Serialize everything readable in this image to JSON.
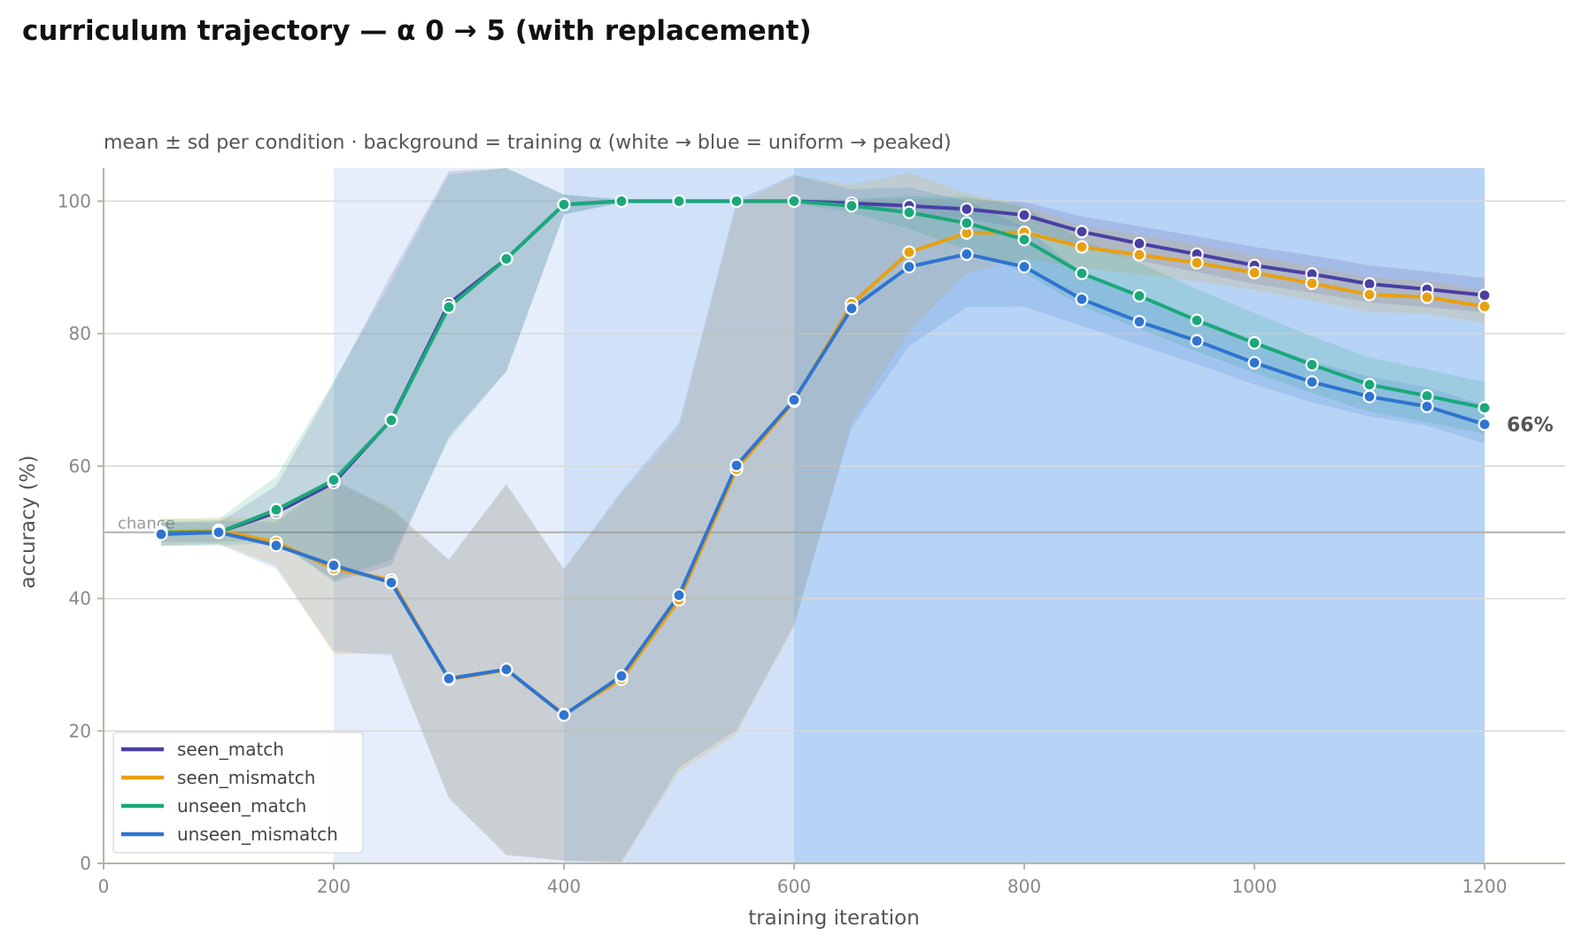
{
  "chart_data": {
    "type": "line",
    "title": "curriculum trajectory — α 0 → 5 (with replacement)",
    "subtitle": "mean ± sd per condition · background = training α (white → blue = uniform → peaked)",
    "xlabel": "training iteration",
    "ylabel": "accuracy (%)",
    "xlim": [
      0,
      1270
    ],
    "ylim": [
      0,
      105
    ],
    "xticks": [
      0,
      200,
      400,
      600,
      800,
      1000,
      1200
    ],
    "yticks": [
      0,
      20,
      40,
      60,
      80,
      100
    ],
    "grid": "horizontal",
    "legend_position": "lower-left",
    "chance": {
      "label": "chance",
      "value": 50
    },
    "end_annotation": {
      "series": "unseen_mismatch",
      "label": "66%"
    },
    "background_bands": [
      {
        "x_start": 200,
        "x_end": 400,
        "color": "#e6eefb"
      },
      {
        "x_start": 400,
        "x_end": 600,
        "color": "#d1e2f8"
      },
      {
        "x_start": 600,
        "x_end": 1200,
        "color": "#b7d3f5"
      }
    ],
    "x": [
      50,
      100,
      150,
      200,
      250,
      300,
      350,
      400,
      450,
      500,
      550,
      600,
      650,
      700,
      750,
      800,
      850,
      900,
      950,
      1000,
      1050,
      1100,
      1150,
      1200
    ],
    "series": [
      {
        "name": "seen_match",
        "color": "#4a3fa3",
        "values": [
          50,
          50,
          53,
          57.5,
          67,
          84.5,
          91.3,
          99.5,
          100,
          100,
          100,
          100,
          99.7,
          99.3,
          98.8,
          97.9,
          95.4,
          93.6,
          92,
          90.3,
          89,
          87.5,
          86.7,
          85.8
        ],
        "sd": [
          1.5,
          1.5,
          4,
          15,
          22,
          20,
          17,
          1.5,
          0.2,
          0.2,
          0.2,
          0.2,
          0.5,
          1,
          1.5,
          2,
          2.3,
          2.6,
          2.7,
          2.8,
          2.8,
          2.8,
          2.7,
          2.6
        ]
      },
      {
        "name": "seen_mismatch",
        "color": "#e8a010",
        "values": [
          50,
          50.3,
          48.5,
          44.5,
          42.8,
          27.8,
          29.2,
          22.5,
          27.8,
          39.8,
          59.5,
          69.8,
          84.5,
          92.3,
          95.2,
          95.3,
          93.1,
          91.9,
          90.7,
          89.2,
          87.6,
          85.9,
          85.5,
          84.1
        ],
        "sd": [
          2,
          2,
          3.5,
          13,
          11,
          18,
          28,
          22,
          28,
          26,
          40,
          34,
          18,
          12,
          6,
          4,
          3.2,
          3,
          2.8,
          2.6,
          2.6,
          2.6,
          2.5,
          2.5
        ]
      },
      {
        "name": "unseen_match",
        "color": "#1aa87a",
        "values": [
          50,
          50,
          53.4,
          57.9,
          66.9,
          84,
          91.3,
          99.5,
          100,
          100,
          100,
          100,
          99.3,
          98.3,
          96.7,
          94.2,
          89.1,
          85.7,
          82,
          78.6,
          75.3,
          72.3,
          70.6,
          68.8
        ],
        "sd": [
          2,
          2,
          5,
          15,
          21,
          20,
          17,
          1.5,
          0.3,
          0.3,
          0.3,
          0.3,
          1,
          2.5,
          4,
          5,
          5,
          5,
          4.7,
          4.5,
          4.3,
          4.1,
          4,
          3.9
        ]
      },
      {
        "name": "unseen_mismatch",
        "color": "#2f74d0",
        "values": [
          49.7,
          50,
          48,
          45,
          42.4,
          27.9,
          29.3,
          22.4,
          28.3,
          40.5,
          60.1,
          70,
          83.8,
          90.1,
          92,
          90.1,
          85.2,
          81.8,
          78.9,
          75.6,
          72.7,
          70.5,
          69,
          66.3
        ],
        "sd": [
          1.8,
          1.8,
          3.5,
          13,
          11,
          18,
          28,
          22,
          28,
          26,
          40,
          34,
          18,
          12,
          8,
          6,
          4,
          3.5,
          3.5,
          3.3,
          3.1,
          3,
          2.9,
          2.9
        ]
      }
    ]
  }
}
